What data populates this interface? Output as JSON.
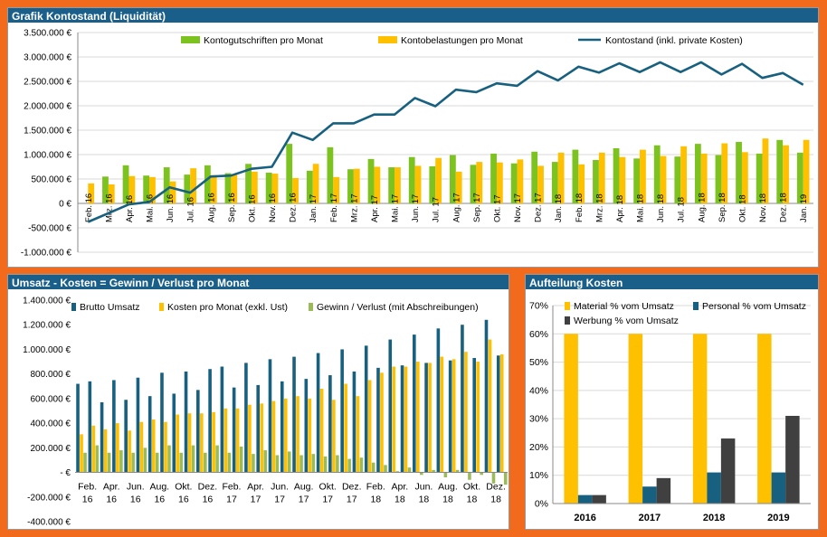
{
  "colors": {
    "green": "#7dc31f",
    "yellow": "#ffc000",
    "navy": "#17607f",
    "olive": "#9bbb59",
    "dark": "#404040",
    "orange": "#f26b1d",
    "header": "#1a5e8a"
  },
  "chart_data": [
    {
      "type": "bar",
      "title": "Grafik Kontostand (Liquidität)",
      "categories": [
        "Feb. 16",
        "Mrz. 16",
        "Apr. 16",
        "Mai. 16",
        "Jun. 16",
        "Jul. 16",
        "Aug. 16",
        "Sep. 16",
        "Okt. 16",
        "Nov. 16",
        "Dez. 16",
        "Jan. 17",
        "Feb. 17",
        "Mrz. 17",
        "Apr. 17",
        "Mai. 17",
        "Jun. 17",
        "Jul. 17",
        "Aug. 17",
        "Sep. 17",
        "Okt. 17",
        "Nov. 17",
        "Dez. 17",
        "Jan. 18",
        "Feb. 18",
        "Mrz. 18",
        "Apr. 18",
        "Mai. 18",
        "Jun. 18",
        "Jul. 18",
        "Aug. 18",
        "Sep. 18",
        "Okt. 18",
        "Nov. 18",
        "Dez. 18",
        "Jan. 19"
      ],
      "series": [
        {
          "name": "Kontogutschriften pro Monat",
          "kind": "bar",
          "color": "#7dc31f",
          "values": [
            0,
            550,
            780,
            570,
            740,
            590,
            780,
            620,
            810,
            630,
            1220,
            670,
            1150,
            700,
            910,
            740,
            950,
            760,
            990,
            790,
            1020,
            820,
            1060,
            850,
            1100,
            890,
            1130,
            920,
            1190,
            960,
            1220,
            990,
            1260,
            1020,
            1300,
            1040
          ]
        },
        {
          "name": "Kontobelastungen pro Monat",
          "kind": "bar",
          "color": "#ffc000",
          "values": [
            410,
            390,
            560,
            540,
            450,
            720,
            580,
            600,
            650,
            610,
            520,
            810,
            540,
            710,
            750,
            740,
            770,
            930,
            650,
            850,
            840,
            900,
            770,
            1040,
            800,
            1040,
            950,
            1100,
            970,
            1170,
            1020,
            1230,
            1050,
            1330,
            1190,
            1300
          ]
        },
        {
          "name": "Kontostand (inkl. private Kosten)",
          "kind": "line",
          "color": "#17607f",
          "values": [
            -380,
            -200,
            -20,
            30,
            330,
            220,
            550,
            570,
            710,
            750,
            1450,
            1300,
            1640,
            1640,
            1820,
            1820,
            2160,
            1990,
            2330,
            2280,
            2460,
            2410,
            2710,
            2520,
            2800,
            2680,
            2870,
            2690,
            2890,
            2690,
            2890,
            2640,
            2860,
            2570,
            2670,
            2430
          ]
        }
      ],
      "yticks": [
        "3.500.000 €",
        "3.000.000 €",
        "2.500.000 €",
        "2.000.000 €",
        "1.500.000 €",
        "1.000.000 €",
        "500.000 €",
        "0 €",
        "-500.000 €",
        "-1.000.000 €"
      ],
      "ylim": [
        -1000,
        3500
      ],
      "value_unit": "thousand €",
      "legend": "top"
    },
    {
      "type": "bar",
      "title": "Umsatz - Kosten = Gewinn / Verlust pro Monat",
      "categories": [
        "Feb.|16",
        "",
        "Apr.|16",
        "",
        "Jun.|16",
        "",
        "Aug.|16",
        "",
        "Okt.|16",
        "",
        "Dez.|16",
        "",
        "Feb.|17",
        "",
        "Apr.|17",
        "",
        "Jun.|17",
        "",
        "Aug.|17",
        "",
        "Okt.|17",
        "",
        "Dez.|17",
        "",
        "Feb.|18",
        "",
        "Apr.|18",
        "",
        "Jun.|18",
        "",
        "Aug.|18",
        "",
        "Okt.|18",
        "",
        "Dez.|18",
        ""
      ],
      "series": [
        {
          "name": "Brutto Umsatz",
          "color": "#17607f",
          "values": [
            720,
            740,
            570,
            750,
            590,
            770,
            620,
            810,
            640,
            820,
            670,
            840,
            860,
            690,
            890,
            710,
            920,
            740,
            940,
            760,
            970,
            790,
            1000,
            820,
            1030,
            850,
            1080,
            870,
            1120,
            890,
            1170,
            910,
            1200,
            930,
            1240,
            950
          ]
        },
        {
          "name": "Kosten pro Monat (exkl. Ust)",
          "color": "#ffc000",
          "values": [
            310,
            380,
            350,
            400,
            340,
            410,
            430,
            410,
            470,
            480,
            480,
            490,
            520,
            520,
            550,
            560,
            580,
            600,
            620,
            600,
            680,
            590,
            720,
            620,
            750,
            810,
            860,
            860,
            900,
            890,
            940,
            920,
            980,
            900,
            1080,
            960
          ]
        },
        {
          "name": "Gewinn / Verlust (mit Abschreibungen)",
          "color": "#9bbb59",
          "values": [
            160,
            220,
            160,
            180,
            160,
            200,
            160,
            220,
            160,
            220,
            160,
            220,
            160,
            210,
            150,
            180,
            140,
            170,
            140,
            150,
            130,
            140,
            110,
            120,
            80,
            60,
            10,
            40,
            -20,
            20,
            -40,
            20,
            -60,
            -20,
            -90,
            -100
          ]
        }
      ],
      "yticks": [
        "1.400.000 €",
        "1.200.000 €",
        "1.000.000 €",
        "800.000 €",
        "600.000 €",
        "400.000 €",
        "200.000 €",
        "-   €",
        "-200.000 €",
        "-400.000 €"
      ],
      "ylim": [
        -400,
        1400
      ],
      "value_unit": "thousand €",
      "legend": "top"
    },
    {
      "type": "bar",
      "title": "Aufteilung Kosten",
      "categories": [
        "2016",
        "2017",
        "2018",
        "2019"
      ],
      "series": [
        {
          "name": "Material % vom Umsatz",
          "color": "#ffc000",
          "values": [
            60,
            60,
            60,
            60
          ]
        },
        {
          "name": "Personal % vom Umsatz",
          "color": "#17607f",
          "values": [
            3,
            6,
            11,
            11
          ]
        },
        {
          "name": "Werbung % vom Umsatz",
          "color": "#404040",
          "values": [
            3,
            9,
            23,
            31
          ]
        }
      ],
      "yticks": [
        "70%",
        "60%",
        "50%",
        "40%",
        "30%",
        "20%",
        "10%",
        "0%"
      ],
      "ylim": [
        0,
        70
      ],
      "legend": "top"
    }
  ]
}
